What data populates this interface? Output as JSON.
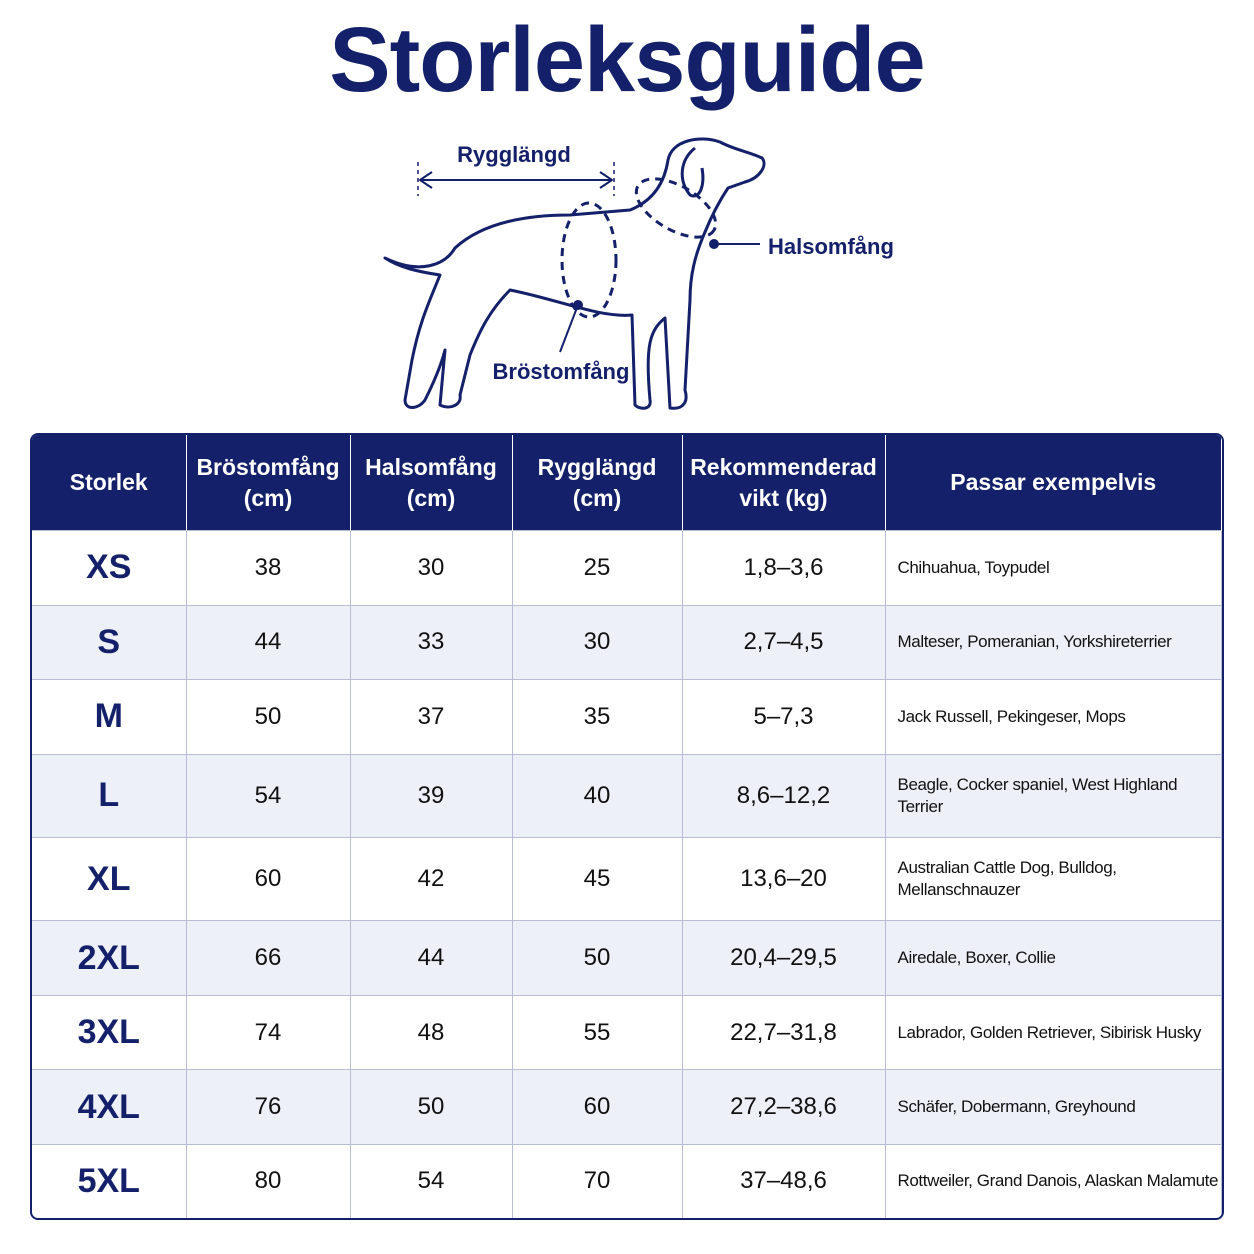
{
  "header": {
    "title": "Storleksguide"
  },
  "diagram": {
    "back_length": "Rygglängd",
    "neck": "Halsomfång",
    "chest": "Bröstomfång"
  },
  "table": {
    "columns": [
      [
        "Storlek"
      ],
      [
        "Bröstomfång",
        "(cm)"
      ],
      [
        "Halsomfång",
        "(cm)"
      ],
      [
        "Rygglängd",
        "(cm)"
      ],
      [
        "Rekommenderad",
        "vikt (kg)"
      ],
      [
        "Passar exempelvis"
      ]
    ],
    "rows": [
      [
        "XS",
        "38",
        "30",
        "25",
        "1,8–3,6",
        "Chihuahua, Toypudel"
      ],
      [
        "S",
        "44",
        "33",
        "30",
        "2,7–4,5",
        "Malteser, Pomeranian, Yorkshireterrier"
      ],
      [
        "M",
        "50",
        "37",
        "35",
        "5–7,3",
        "Jack Russell, Pekingeser, Mops"
      ],
      [
        "L",
        "54",
        "39",
        "40",
        "8,6–12,2",
        "Beagle, Cocker spaniel, West Highland Terrier"
      ],
      [
        "XL",
        "60",
        "42",
        "45",
        "13,6–20",
        "Australian Cattle Dog, Bulldog, Mellanschnauzer"
      ],
      [
        "2XL",
        "66",
        "44",
        "50",
        "20,4–29,5",
        "Airedale, Boxer, Collie"
      ],
      [
        "3XL",
        "74",
        "48",
        "55",
        "22,7–31,8",
        "Labrador, Golden Retriever, Sibirisk Husky"
      ],
      [
        "4XL",
        "76",
        "50",
        "60",
        "27,2–38,6",
        "Schäfer, Dobermann, Greyhound"
      ],
      [
        "5XL",
        "80",
        "54",
        "70",
        "37–48,6",
        "Rottweiler, Grand Danois, Alaskan Malamute"
      ]
    ]
  }
}
